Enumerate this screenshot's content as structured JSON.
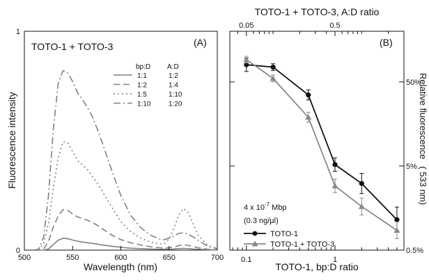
{
  "chart_data": [
    {
      "type": "line",
      "panel_label": "(A)",
      "title": "TOTO-1 + TOTO-3",
      "xlabel": "Wavelength (nm)",
      "ylabel": "Fluorescence intensity",
      "xlim": [
        500,
        700
      ],
      "ylim": [
        0,
        1
      ],
      "x_ticks": [
        "500",
        "550",
        "600",
        "650",
        "700"
      ],
      "y_ticks": [
        "0",
        "1"
      ],
      "legend": {
        "placement": "top-right",
        "headers": [
          "bp:D",
          "A:D"
        ],
        "rows": [
          [
            "1:1",
            "1:2"
          ],
          [
            "1:2",
            "1:4"
          ],
          [
            "1:5",
            "1:10"
          ],
          [
            "1:10",
            "1:20"
          ]
        ]
      },
      "x": [
        510,
        515,
        520,
        525,
        530,
        535,
        540,
        545,
        550,
        555,
        560,
        565,
        570,
        575,
        580,
        590,
        600,
        610,
        620,
        630,
        640,
        645,
        650,
        655,
        660,
        665,
        670,
        675,
        680,
        690,
        700
      ],
      "series": [
        {
          "values": [
            0,
            0,
            0,
            0.005,
            0.025,
            0.045,
            0.054,
            0.052,
            0.046,
            0.041,
            0.037,
            0.034,
            0.031,
            0.028,
            0.024,
            0.018,
            0.013,
            0.009,
            0.007,
            0.005,
            0.004,
            0.004,
            0.004,
            0.005,
            0.007,
            0.008,
            0.007,
            0.005,
            0.004,
            0.002,
            0.001
          ],
          "dash": "",
          "color": "#808080"
        },
        {
          "values": [
            0,
            0,
            0.005,
            0.04,
            0.105,
            0.155,
            0.185,
            0.182,
            0.165,
            0.152,
            0.145,
            0.137,
            0.128,
            0.115,
            0.1,
            0.07,
            0.048,
            0.034,
            0.024,
            0.016,
            0.011,
            0.01,
            0.011,
            0.014,
            0.02,
            0.025,
            0.022,
            0.016,
            0.011,
            0.004,
            0.002
          ],
          "dash": "9,5",
          "color": "#808080"
        },
        {
          "values": [
            0,
            0.003,
            0.03,
            0.12,
            0.28,
            0.42,
            0.495,
            0.49,
            0.45,
            0.41,
            0.39,
            0.37,
            0.34,
            0.31,
            0.275,
            0.2,
            0.13,
            0.085,
            0.056,
            0.038,
            0.028,
            0.03,
            0.05,
            0.1,
            0.16,
            0.19,
            0.17,
            0.12,
            0.07,
            0.022,
            0.006
          ],
          "dash": "2,4",
          "color": "#808080"
        },
        {
          "values": [
            0,
            0.005,
            0.06,
            0.25,
            0.55,
            0.76,
            0.82,
            0.81,
            0.77,
            0.72,
            0.69,
            0.655,
            0.615,
            0.56,
            0.5,
            0.37,
            0.25,
            0.16,
            0.105,
            0.07,
            0.05,
            0.048,
            0.055,
            0.065,
            0.076,
            0.08,
            0.073,
            0.06,
            0.045,
            0.018,
            0.007
          ],
          "dash": "10,4,2,4",
          "color": "#808080"
        }
      ]
    },
    {
      "type": "line",
      "panel_label": "(B)",
      "xlabel": "TOTO-1, bp:D ratio",
      "top_xlabel": "TOTO-1 + TOTO-3, A:D ratio",
      "ylabel": "Relative fluorescence",
      "ylabel_secondary": "( 533 nm)",
      "x_scale": "log",
      "y_scale": "log",
      "xlim": [
        0.065,
        6
      ],
      "ylim": [
        0.5,
        200
      ],
      "x_ticks": [
        "0.1",
        "1"
      ],
      "top_x_ticks": [
        "0.05",
        "0.5"
      ],
      "y_ticks": [
        "50%",
        "5%",
        "0.5%"
      ],
      "annotation": [
        "4 x 10",
        "-7",
        " Mbp",
        "(0.3 ng/µl)"
      ],
      "legend": {
        "placement": "bottom-left"
      },
      "series": [
        {
          "name": "TOTO-1",
          "x": [
            0.1,
            0.2,
            0.5,
            1,
            2,
            5
          ],
          "y": [
            80,
            75,
            35,
            5.2,
            3.1,
            1.15
          ],
          "err": [
            0.08,
            0.04,
            0.06,
            0.08,
            0.12,
            0.15
          ],
          "marker": "circle",
          "color": "#111111"
        },
        {
          "name": "TOTO-1 + TOTO-3",
          "x": [
            0.1,
            0.2,
            0.5,
            1,
            2,
            5
          ],
          "y": [
            92,
            55,
            19,
            2.9,
            1.65,
            0.86
          ],
          "err": [
            0.04,
            0.04,
            0.06,
            0.08,
            0.1,
            0.1
          ],
          "marker": "triangle",
          "color": "#888888"
        }
      ]
    }
  ]
}
